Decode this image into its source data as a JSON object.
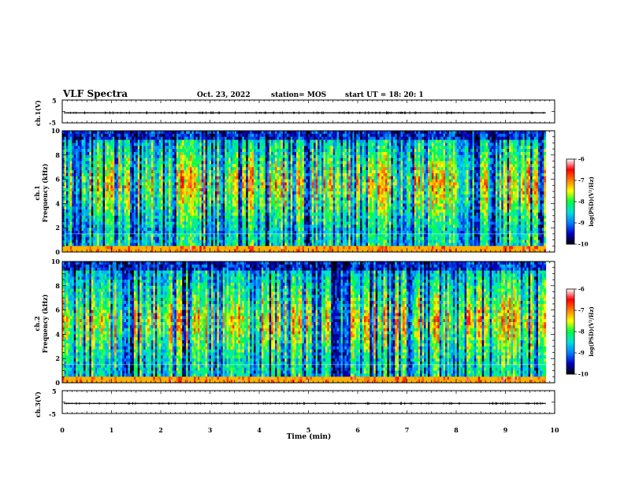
{
  "header": {
    "title": "VLF Spectra",
    "date": "Oct. 23, 2022",
    "station": "station= MOS",
    "start_ut": "start  UT =   18: 20: 1"
  },
  "chart_data": [
    {
      "type": "line",
      "panel": "ch1-waveform",
      "ylabel": "ch.1(V)",
      "ylim": [
        -5,
        5
      ],
      "yticks": [
        "5",
        "-5"
      ],
      "level": -0.6
    },
    {
      "type": "heatmap",
      "panel": "ch1-spectrogram",
      "ylabel": "ch.1\nFrequency (kHz)",
      "ylabel_lines": [
        "ch.1",
        "Frequency (kHz)"
      ],
      "ylim": [
        0,
        10
      ],
      "yticks": [
        "0",
        "2",
        "4",
        "6",
        "8",
        "10"
      ],
      "band_center_khz": 5.5,
      "colorbar": {
        "label": "log(PSD)(V²/Hz)",
        "ticks": [
          "-6",
          "-7",
          "-8",
          "-9",
          "-10"
        ],
        "range": [
          -10,
          -6
        ]
      }
    },
    {
      "type": "heatmap",
      "panel": "ch2-spectrogram",
      "ylabel": "ch.2\nFrequency (kHz)",
      "ylabel_lines": [
        "ch.2",
        "Frequency (kHz)"
      ],
      "ylim": [
        0,
        10
      ],
      "yticks": [
        "0",
        "2",
        "4",
        "6",
        "8",
        "10"
      ],
      "band_center_khz": 5.0,
      "colorbar": {
        "label": "log(PSD)(V²/Hz)",
        "ticks": [
          "-6",
          "-7",
          "-8",
          "-9",
          "-10"
        ],
        "range": [
          -10,
          -6
        ]
      }
    },
    {
      "type": "line",
      "panel": "ch3-waveform",
      "ylabel": "ch.3(V)",
      "ylim": [
        -5,
        5
      ],
      "yticks": [
        "5",
        "-5"
      ],
      "level": -0.6
    }
  ],
  "xaxis": {
    "xlabel": "Time (min)",
    "xlim": [
      0,
      10
    ],
    "ticks": [
      "0",
      "1",
      "2",
      "3",
      "4",
      "5",
      "6",
      "7",
      "8",
      "9",
      "10"
    ],
    "data_end_min": 9.82
  },
  "colormap": [
    "#000000",
    "#0000c8",
    "#0080ff",
    "#00e0e0",
    "#00ff40",
    "#ffff00",
    "#ff8000",
    "#ff0000",
    "#ffffff"
  ]
}
